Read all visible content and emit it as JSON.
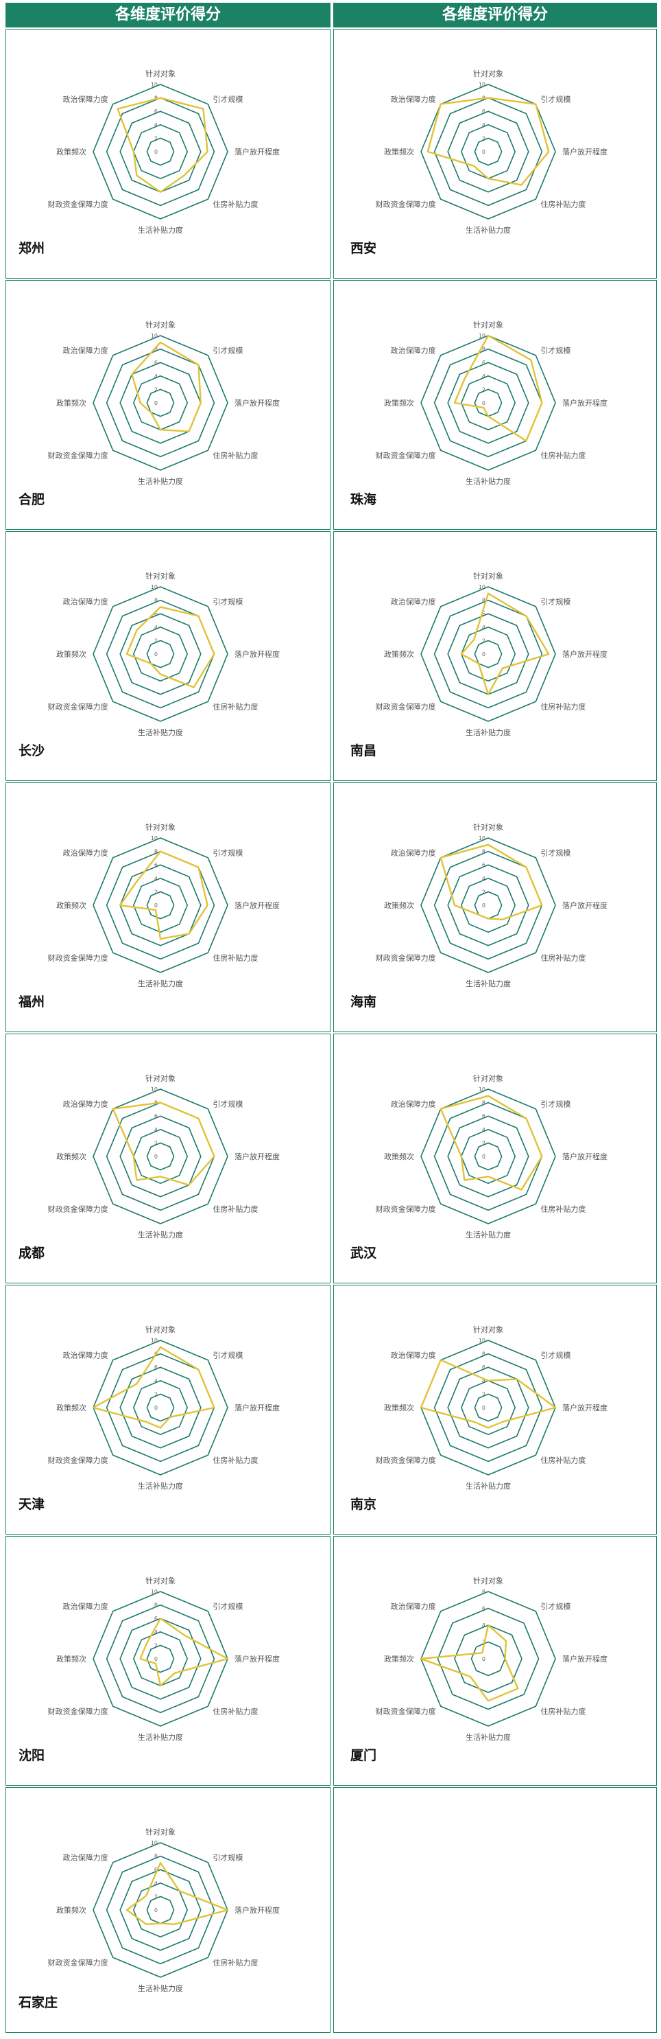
{
  "header": {
    "left": "各维度评价得分",
    "right": "各维度评价得分"
  },
  "colors": {
    "header_bg": "#1c8266",
    "grid_line": "#1b7a6b",
    "series_line": "#e1c236",
    "cell_border": "#1c8266"
  },
  "chart_data": [
    {
      "type": "radar",
      "city": "郑州",
      "axes": [
        "针对对象",
        "引才规模",
        "落户放开程度",
        "住房补贴力度",
        "生活补贴力度",
        "财政资金保障力度",
        "政策频次",
        "政治保障力度"
      ],
      "tick_labels": [
        "0",
        "2",
        "4",
        "6",
        "8",
        "10"
      ],
      "rmax": 10,
      "values": [
        8,
        9,
        7,
        5,
        6,
        5,
        4,
        9
      ]
    },
    {
      "type": "radar",
      "city": "西安",
      "axes": [
        "针对对象",
        "引才规模",
        "落户放开程度",
        "住房补贴力度",
        "生活补贴力度",
        "财政资金保障力度",
        "政策频次",
        "政治保障力度"
      ],
      "tick_labels": [
        "0",
        "2",
        "4",
        "6",
        "8",
        "10"
      ],
      "rmax": 10,
      "values": [
        8,
        10,
        9,
        7,
        4,
        3,
        9,
        10
      ]
    },
    {
      "type": "radar",
      "city": "合肥",
      "axes": [
        "针对对象",
        "引才规模",
        "落户放开程度",
        "住房补贴力度",
        "生活补贴力度",
        "财政资金保障力度",
        "政策频次",
        "政治保障力度"
      ],
      "tick_labels": [
        "0",
        "2",
        "4",
        "6",
        "8",
        "10"
      ],
      "rmax": 10,
      "values": [
        9,
        8,
        6,
        6,
        4,
        2,
        3,
        6
      ]
    },
    {
      "type": "radar",
      "city": "珠海",
      "axes": [
        "针对对象",
        "引才规模",
        "落户放开程度",
        "住房补贴力度",
        "生活补贴力度",
        "财政资金保障力度",
        "政策频次",
        "政治保障力度"
      ],
      "tick_labels": [
        "0",
        "2",
        "4",
        "6",
        "8",
        "10"
      ],
      "rmax": 10,
      "values": [
        10,
        9,
        8,
        8,
        2,
        1,
        5,
        5
      ]
    },
    {
      "type": "radar",
      "city": "长沙",
      "axes": [
        "针对对象",
        "引才规模",
        "落户放开程度",
        "住房补贴力度",
        "生活补贴力度",
        "财政资金保障力度",
        "政策频次",
        "政治保障力度"
      ],
      "tick_labels": [
        "0",
        "2",
        "4",
        "6",
        "8",
        "10"
      ],
      "rmax": 10,
      "values": [
        7,
        8,
        8,
        7,
        3,
        2,
        5,
        5
      ]
    },
    {
      "type": "radar",
      "city": "南昌",
      "axes": [
        "针对对象",
        "引才规模",
        "落户放开程度",
        "住房补贴力度",
        "生活补贴力度",
        "财政资金保障力度",
        "政策频次",
        "政治保障力度"
      ],
      "tick_labels": [
        "0",
        "2",
        "4",
        "6",
        "8",
        "10"
      ],
      "rmax": 10,
      "values": [
        9,
        8,
        9,
        3,
        6,
        2,
        4,
        3
      ]
    },
    {
      "type": "radar",
      "city": "福州",
      "axes": [
        "针对对象",
        "引才规模",
        "落户放开程度",
        "住房补贴力度",
        "生活补贴力度",
        "财政资金保障力度",
        "政策频次",
        "政治保障力度"
      ],
      "tick_labels": [
        "0",
        "2",
        "4",
        "6",
        "8",
        "10"
      ],
      "rmax": 10,
      "values": [
        8,
        8,
        7,
        6,
        5,
        1,
        6,
        5
      ]
    },
    {
      "type": "radar",
      "city": "海南",
      "axes": [
        "针对对象",
        "引才规模",
        "落户放开程度",
        "住房补贴力度",
        "生活补贴力度",
        "财政资金保障力度",
        "政策频次",
        "政治保障力度"
      ],
      "tick_labels": [
        "0",
        "2",
        "4",
        "6",
        "8",
        "10"
      ],
      "rmax": 10,
      "values": [
        9,
        8,
        8,
        3,
        2,
        2,
        5,
        10
      ]
    },
    {
      "type": "radar",
      "city": "成都",
      "axes": [
        "针对对象",
        "引才规模",
        "落户放开程度",
        "住房补贴力度",
        "生活补贴力度",
        "财政资金保障力度",
        "政策频次",
        "政治保障力度"
      ],
      "tick_labels": [
        "0",
        "2",
        "4",
        "6",
        "8",
        "10"
      ],
      "rmax": 10,
      "values": [
        8,
        8,
        8,
        6,
        3,
        5,
        4,
        10
      ]
    },
    {
      "type": "radar",
      "city": "武汉",
      "axes": [
        "针对对象",
        "引才规模",
        "落户放开程度",
        "住房补贴力度",
        "生活补贴力度",
        "财政资金保障力度",
        "政策频次",
        "政治保障力度"
      ],
      "tick_labels": [
        "0",
        "2",
        "4",
        "6",
        "8",
        "10"
      ],
      "rmax": 10,
      "values": [
        9,
        8,
        8,
        7,
        3,
        5,
        4,
        10
      ]
    },
    {
      "type": "radar",
      "city": "天津",
      "axes": [
        "针对对象",
        "引才规模",
        "落户放开程度",
        "住房补贴力度",
        "生活补贴力度",
        "财政资金保障力度",
        "政策频次",
        "政治保障力度"
      ],
      "tick_labels": [
        "0",
        "2",
        "4",
        "6",
        "8",
        "10"
      ],
      "rmax": 10,
      "values": [
        9,
        8,
        8,
        2,
        3,
        3,
        10,
        5
      ]
    },
    {
      "type": "radar",
      "city": "南京",
      "axes": [
        "针对对象",
        "引才规模",
        "落户放开程度",
        "住房补贴力度",
        "生活补贴力度",
        "财政资金保障力度",
        "政策频次",
        "政治保障力度"
      ],
      "tick_labels": [
        "0",
        "2",
        "4",
        "6",
        "8",
        "10"
      ],
      "rmax": 10,
      "values": [
        4,
        6,
        10,
        3,
        3,
        3,
        10,
        10
      ]
    },
    {
      "type": "radar",
      "city": "沈阳",
      "axes": [
        "针对对象",
        "引才规模",
        "落户放开程度",
        "住房补贴力度",
        "生活补贴力度",
        "财政资金保障力度",
        "政策频次",
        "政治保障力度"
      ],
      "tick_labels": [
        "0",
        "2",
        "4",
        "6",
        "8",
        "10"
      ],
      "rmax": 10,
      "values": [
        6,
        5,
        10,
        3,
        4,
        1,
        3,
        3
      ]
    },
    {
      "type": "radar",
      "city": "厦门",
      "axes": [
        "针对对象",
        "引才规模",
        "落户放开程度",
        "住房补贴力度",
        "生活补贴力度",
        "财政资金保障力度",
        "政策频次",
        "政治保障力度"
      ],
      "tick_labels": [
        "0",
        "2",
        "4",
        "6",
        "8"
      ],
      "rmax": 8,
      "values": [
        4,
        3,
        2,
        5,
        5,
        3,
        8,
        1
      ]
    },
    {
      "type": "radar",
      "city": "石家庄",
      "axes": [
        "针对对象",
        "引才规模",
        "落户放开程度",
        "住房补贴力度",
        "生活补贴力度",
        "财政资金保障力度",
        "政策频次",
        "政治保障力度"
      ],
      "tick_labels": [
        "0",
        "2",
        "4",
        "6",
        "8",
        "10"
      ],
      "rmax": 10,
      "values": [
        7,
        4,
        10,
        3,
        2,
        3,
        5,
        3
      ]
    }
  ]
}
